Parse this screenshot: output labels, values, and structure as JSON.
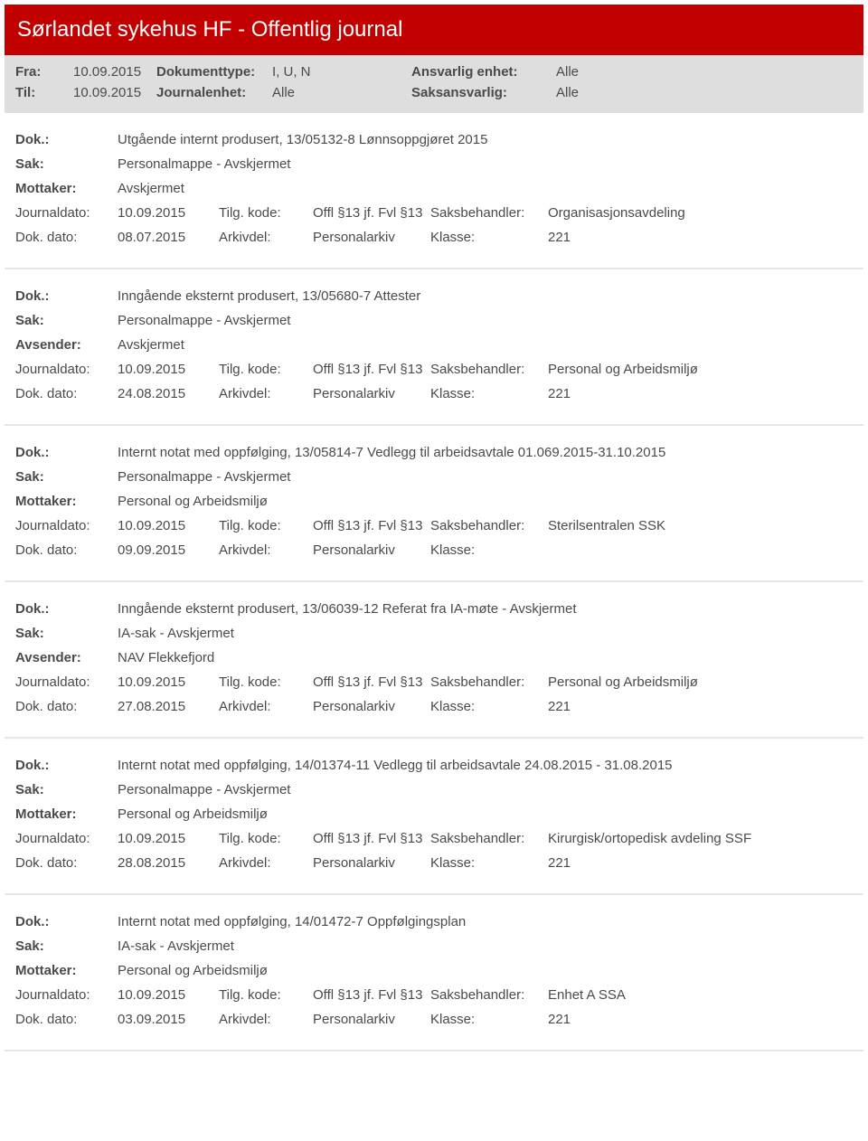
{
  "header": {
    "title": "Sørlandet sykehus HF - Offentlig journal"
  },
  "filters": {
    "row1": {
      "fra_label": "Fra:",
      "fra_value": "10.09.2015",
      "doktype_label": "Dokumenttype:",
      "doktype_value": "I, U, N",
      "ansvarlig_label": "Ansvarlig enhet:",
      "ansvarlig_value": "Alle"
    },
    "row2": {
      "til_label": "Til:",
      "til_value": "10.09.2015",
      "journalenhet_label": "Journalenhet:",
      "journalenhet_value": "Alle",
      "saksansvarlig_label": "Saksansvarlig:",
      "saksansvarlig_value": "Alle"
    }
  },
  "labels": {
    "dok": "Dok.:",
    "sak": "Sak:",
    "mottaker": "Mottaker:",
    "avsender": "Avsender:",
    "journaldato": "Journaldato:",
    "dokdato": "Dok. dato:",
    "tilgkode": "Tilg. kode:",
    "arkivdel": "Arkivdel:",
    "saksbehandler": "Saksbehandler:",
    "klasse": "Klasse:"
  },
  "records": [
    {
      "dok": "Utgående internt produsert, 13/05132-8 Lønnsoppgjøret 2015",
      "sak": "Personalmappe - Avskjermet",
      "party_label": "Mottaker:",
      "party_value": "Avskjermet",
      "journaldato": "10.09.2015",
      "tilgkode": "Offl §13 jf. Fvl §13",
      "saksbehandler": "Organisasjonsavdeling",
      "dokdato": "08.07.2015",
      "arkivdel": "Personalarkiv",
      "klasse": "221"
    },
    {
      "dok": "Inngående eksternt produsert, 13/05680-7 Attester",
      "sak": "Personalmappe - Avskjermet",
      "party_label": "Avsender:",
      "party_value": "Avskjermet",
      "journaldato": "10.09.2015",
      "tilgkode": "Offl §13 jf. Fvl §13",
      "saksbehandler": "Personal og Arbeidsmiljø",
      "dokdato": "24.08.2015",
      "arkivdel": "Personalarkiv",
      "klasse": "221"
    },
    {
      "dok": "Internt notat med oppfølging, 13/05814-7 Vedlegg til arbeidsavtale 01.069.2015-31.10.2015",
      "sak": "Personalmappe - Avskjermet",
      "party_label": "Mottaker:",
      "party_value": "Personal og Arbeidsmiljø",
      "journaldato": "10.09.2015",
      "tilgkode": "Offl §13 jf. Fvl §13",
      "saksbehandler": "Sterilsentralen SSK",
      "dokdato": "09.09.2015",
      "arkivdel": "Personalarkiv",
      "klasse": ""
    },
    {
      "dok": "Inngående eksternt produsert, 13/06039-12 Referat fra IA-møte - Avskjermet",
      "sak": "IA-sak - Avskjermet",
      "party_label": "Avsender:",
      "party_value": "NAV Flekkefjord",
      "journaldato": "10.09.2015",
      "tilgkode": "Offl §13 jf. Fvl §13",
      "saksbehandler": "Personal og Arbeidsmiljø",
      "dokdato": "27.08.2015",
      "arkivdel": "Personalarkiv",
      "klasse": "221"
    },
    {
      "dok": "Internt notat med oppfølging, 14/01374-11 Vedlegg til arbeidsavtale 24.08.2015 - 31.08.2015",
      "sak": "Personalmappe - Avskjermet",
      "party_label": "Mottaker:",
      "party_value": "Personal og Arbeidsmiljø",
      "journaldato": "10.09.2015",
      "tilgkode": "Offl §13 jf. Fvl §13",
      "saksbehandler": "Kirurgisk/ortopedisk avdeling SSF",
      "dokdato": "28.08.2015",
      "arkivdel": "Personalarkiv",
      "klasse": "221"
    },
    {
      "dok": "Internt notat med oppfølging, 14/01472-7 Oppfølgingsplan",
      "sak": "IA-sak - Avskjermet",
      "party_label": "Mottaker:",
      "party_value": "Personal og Arbeidsmiljø",
      "journaldato": "10.09.2015",
      "tilgkode": "Offl §13 jf. Fvl §13",
      "saksbehandler": "Enhet A SSA",
      "dokdato": "03.09.2015",
      "arkivdel": "Personalarkiv",
      "klasse": "221"
    }
  ]
}
